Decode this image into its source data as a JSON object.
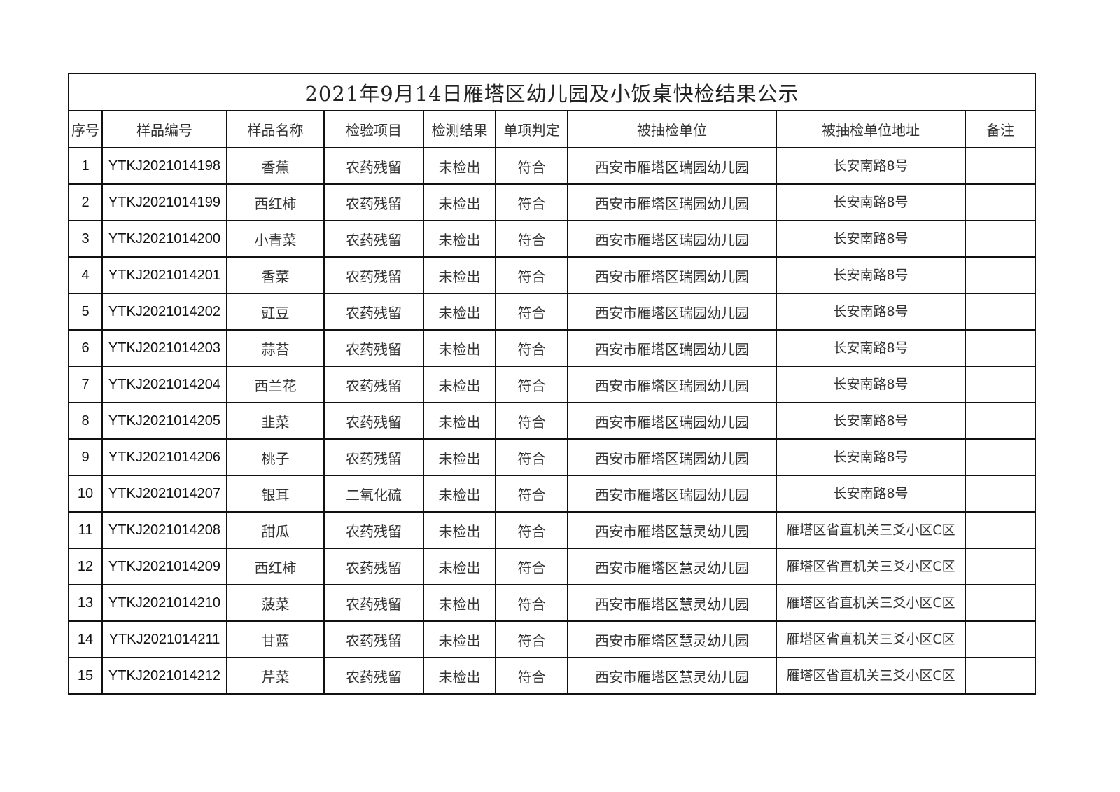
{
  "title": "2021年9月14日雁塔区幼儿园及小饭桌快检结果公示",
  "headers": [
    "序号",
    "样品编号",
    "样品名称",
    "检验项目",
    "检测结果",
    "单项判定",
    "被抽检单位",
    "被抽检单位地址",
    "备注"
  ],
  "rows": [
    {
      "no": "1",
      "code": "YTKJ2021014198",
      "name": "香蕉",
      "item": "农药残留",
      "result": "未检出",
      "verdict": "符合",
      "unit": "西安市雁塔区瑞园幼儿园",
      "address": "长安南路8号",
      "note": ""
    },
    {
      "no": "2",
      "code": "YTKJ2021014199",
      "name": "西红柿",
      "item": "农药残留",
      "result": "未检出",
      "verdict": "符合",
      "unit": "西安市雁塔区瑞园幼儿园",
      "address": "长安南路8号",
      "note": ""
    },
    {
      "no": "3",
      "code": "YTKJ2021014200",
      "name": "小青菜",
      "item": "农药残留",
      "result": "未检出",
      "verdict": "符合",
      "unit": "西安市雁塔区瑞园幼儿园",
      "address": "长安南路8号",
      "note": ""
    },
    {
      "no": "4",
      "code": "YTKJ2021014201",
      "name": "香菜",
      "item": "农药残留",
      "result": "未检出",
      "verdict": "符合",
      "unit": "西安市雁塔区瑞园幼儿园",
      "address": "长安南路8号",
      "note": ""
    },
    {
      "no": "5",
      "code": "YTKJ2021014202",
      "name": "豇豆",
      "item": "农药残留",
      "result": "未检出",
      "verdict": "符合",
      "unit": "西安市雁塔区瑞园幼儿园",
      "address": "长安南路8号",
      "note": ""
    },
    {
      "no": "6",
      "code": "YTKJ2021014203",
      "name": "蒜苔",
      "item": "农药残留",
      "result": "未检出",
      "verdict": "符合",
      "unit": "西安市雁塔区瑞园幼儿园",
      "address": "长安南路8号",
      "note": ""
    },
    {
      "no": "7",
      "code": "YTKJ2021014204",
      "name": "西兰花",
      "item": "农药残留",
      "result": "未检出",
      "verdict": "符合",
      "unit": "西安市雁塔区瑞园幼儿园",
      "address": "长安南路8号",
      "note": ""
    },
    {
      "no": "8",
      "code": "YTKJ2021014205",
      "name": "韭菜",
      "item": "农药残留",
      "result": "未检出",
      "verdict": "符合",
      "unit": "西安市雁塔区瑞园幼儿园",
      "address": "长安南路8号",
      "note": ""
    },
    {
      "no": "9",
      "code": "YTKJ2021014206",
      "name": "桃子",
      "item": "农药残留",
      "result": "未检出",
      "verdict": "符合",
      "unit": "西安市雁塔区瑞园幼儿园",
      "address": "长安南路8号",
      "note": ""
    },
    {
      "no": "10",
      "code": "YTKJ2021014207",
      "name": "银耳",
      "item": "二氧化硫",
      "result": "未检出",
      "verdict": "符合",
      "unit": "西安市雁塔区瑞园幼儿园",
      "address": "长安南路8号",
      "note": ""
    },
    {
      "no": "11",
      "code": "YTKJ2021014208",
      "name": "甜瓜",
      "item": "农药残留",
      "result": "未检出",
      "verdict": "符合",
      "unit": "西安市雁塔区慧灵幼儿园",
      "address": "雁塔区省直机关三爻小区C区",
      "note": ""
    },
    {
      "no": "12",
      "code": "YTKJ2021014209",
      "name": "西红柿",
      "item": "农药残留",
      "result": "未检出",
      "verdict": "符合",
      "unit": "西安市雁塔区慧灵幼儿园",
      "address": "雁塔区省直机关三爻小区C区",
      "note": ""
    },
    {
      "no": "13",
      "code": "YTKJ2021014210",
      "name": "菠菜",
      "item": "农药残留",
      "result": "未检出",
      "verdict": "符合",
      "unit": "西安市雁塔区慧灵幼儿园",
      "address": "雁塔区省直机关三爻小区C区",
      "note": ""
    },
    {
      "no": "14",
      "code": "YTKJ2021014211",
      "name": "甘蓝",
      "item": "农药残留",
      "result": "未检出",
      "verdict": "符合",
      "unit": "西安市雁塔区慧灵幼儿园",
      "address": "雁塔区省直机关三爻小区C区",
      "note": ""
    },
    {
      "no": "15",
      "code": "YTKJ2021014212",
      "name": "芹菜",
      "item": "农药残留",
      "result": "未检出",
      "verdict": "符合",
      "unit": "西安市雁塔区慧灵幼儿园",
      "address": "雁塔区省直机关三爻小区C区",
      "note": ""
    }
  ]
}
